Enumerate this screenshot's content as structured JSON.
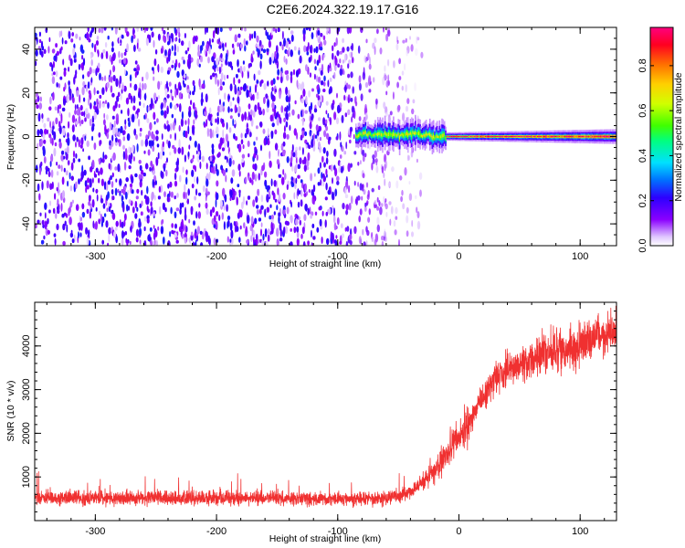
{
  "title": "C2E6.2024.322.19.17.G16",
  "chart_data": [
    {
      "type": "heatmap",
      "xlabel": "Height of straight line (km)",
      "ylabel": "Frequency (Hz)",
      "xlim": [
        -350,
        130
      ],
      "ylim": [
        -50,
        50
      ],
      "x_ticks": [
        -300,
        -200,
        -100,
        0,
        100
      ],
      "y_ticks": [
        -40,
        -20,
        0,
        20,
        40
      ],
      "colorbar": {
        "label": "Normalized spectral amplitude",
        "range": [
          0,
          0.97
        ],
        "ticks": [
          0.0,
          0.2,
          0.4,
          0.6,
          0.8
        ],
        "colormap": [
          "#ffffff",
          "#e0c8ff",
          "#8a00ff",
          "#2d00ff",
          "#0070ff",
          "#00e0ff",
          "#00ff80",
          "#40ff00",
          "#d0ff00",
          "#ffd000",
          "#ff7000",
          "#ff0020",
          "#ff0080"
        ]
      },
      "features": {
        "noise_region_x": [
          -350,
          -40
        ],
        "noise_amplitude": 0.15,
        "carrier_start_x": -85,
        "carrier_frequency": 0,
        "carrier_peak_amplitude": 0.95
      }
    },
    {
      "type": "line",
      "xlabel": "Height of straight line (km)",
      "ylabel": "SNR (10 * v/v)",
      "xlim": [
        -350,
        130
      ],
      "ylim": [
        0,
        5000
      ],
      "x_ticks": [
        -300,
        -200,
        -100,
        0,
        100
      ],
      "y_ticks": [
        1000,
        2000,
        3000,
        4000
      ],
      "color": "#f03030",
      "series_envelope": {
        "x": [
          -350,
          -300,
          -250,
          -200,
          -150,
          -100,
          -60,
          -40,
          -20,
          0,
          20,
          30,
          50,
          80,
          100,
          130
        ],
        "mean": [
          520,
          520,
          520,
          510,
          510,
          500,
          520,
          640,
          1150,
          1900,
          2800,
          3300,
          3550,
          3900,
          4000,
          4350
        ]
      }
    }
  ]
}
